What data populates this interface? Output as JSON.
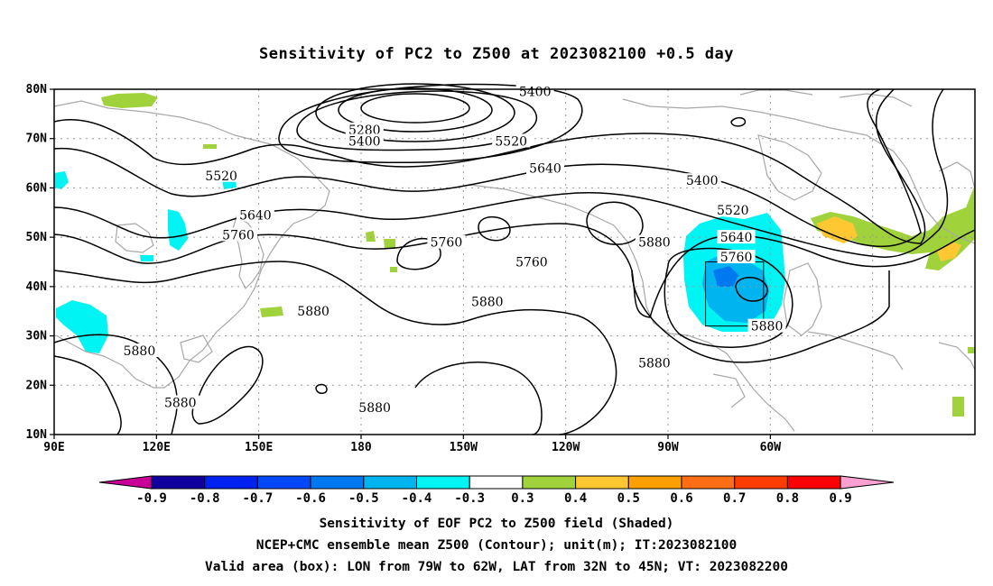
{
  "title": "Sensitivity of PC2 to Z500 at 2023082100 +0.5 day",
  "map": {
    "lon_labels": [
      "90E",
      "120E",
      "150E",
      "180",
      "150W",
      "120W",
      "90W",
      "60W"
    ],
    "lat_labels": [
      "80N",
      "70N",
      "60N",
      "50N",
      "40N",
      "30N",
      "20N",
      "10N"
    ],
    "contour_labels": [
      {
        "text": "5400",
        "lon": 231,
        "lat": 79.5
      },
      {
        "text": "5280",
        "lon": 181,
        "lat": 71.8
      },
      {
        "text": "5400",
        "lon": 181,
        "lat": 69.5
      },
      {
        "text": "5520",
        "lon": 139,
        "lat": 62.5
      },
      {
        "text": "5520",
        "lon": 224,
        "lat": 69.5
      },
      {
        "text": "5640",
        "lon": 234,
        "lat": 64.0
      },
      {
        "text": "5400",
        "lon": 280,
        "lat": 61.5
      },
      {
        "text": "5640",
        "lon": 149,
        "lat": 54.5
      },
      {
        "text": "5520",
        "lon": 289,
        "lat": 55.5
      },
      {
        "text": "5760",
        "lon": 144,
        "lat": 50.5
      },
      {
        "text": "5760",
        "lon": 205,
        "lat": 49.0
      },
      {
        "text": "5880",
        "lon": 266,
        "lat": 49.0
      },
      {
        "text": "5640",
        "lon": 290,
        "lat": 50.0
      },
      {
        "text": "5760",
        "lon": 290,
        "lat": 46.0
      },
      {
        "text": "5760",
        "lon": 230,
        "lat": 45.0
      },
      {
        "text": "5880",
        "lon": 166,
        "lat": 35.0
      },
      {
        "text": "5880",
        "lon": 217,
        "lat": 37.0
      },
      {
        "text": "5880",
        "lon": 299,
        "lat": 32.0
      },
      {
        "text": "5880",
        "lon": 115,
        "lat": 27.0
      },
      {
        "text": "5880",
        "lon": 266,
        "lat": 24.5
      },
      {
        "text": "5880",
        "lon": 127,
        "lat": 16.5
      },
      {
        "text": "5880",
        "lon": 184,
        "lat": 15.5
      }
    ],
    "valid_box": {
      "lon_min": -79,
      "lon_max": -62,
      "lat_min": 32,
      "lat_max": 45
    }
  },
  "colorbar": {
    "labels": [
      "-0.9",
      "-0.8",
      "-0.7",
      "-0.6",
      "-0.5",
      "-0.4",
      "-0.3",
      "0.3",
      "0.4",
      "0.5",
      "0.6",
      "0.7",
      "0.8",
      "0.9"
    ],
    "colors": [
      "#10009e",
      "#0022f0",
      "#0048f8",
      "#0078f0",
      "#00b4f0",
      "#00f4f4",
      "#ffffff",
      "#a0d23c",
      "#ffc832",
      "#ffa000",
      "#ff6e14",
      "#ff3c00",
      "#ff0000"
    ],
    "low_extend": "#c80098",
    "high_extend": "#ffa0d2"
  },
  "captions": [
    "Sensitivity of EOF PC2 to Z500 field (Shaded)",
    "NCEP+CMC ensemble mean Z500 (Contour); unit(m); IT:2023082100",
    "Valid area (box): LON from 79W to 62W, LAT from 32N to 45N; VT: 2023082200"
  ]
}
